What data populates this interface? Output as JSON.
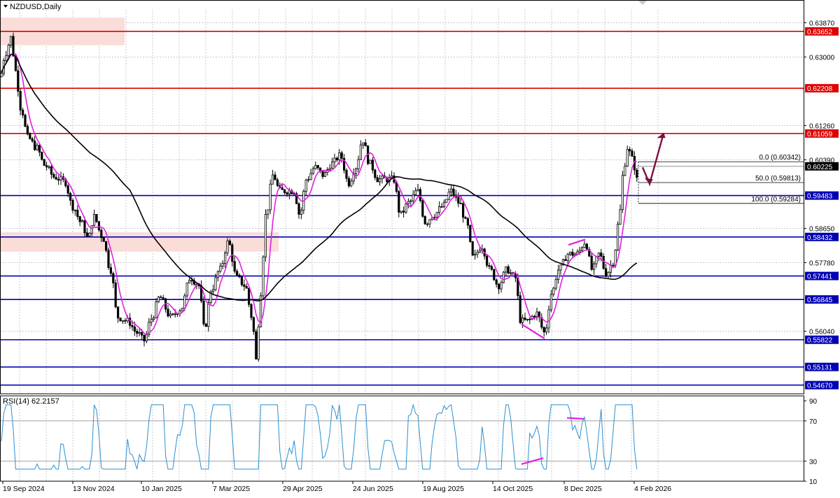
{
  "chart_data": {
    "type": "candlestick",
    "symbol_label": "NZDUSD,Daily",
    "indicator_label": "RSI(14) 62.2157",
    "y_axis_ticks": [
      "0.63870",
      "0.63000",
      "0.61260",
      "0.60390",
      "0.58650",
      "0.57780",
      "0.56040"
    ],
    "ylim": [
      0.5445,
      0.642
    ],
    "rsi_ticks": [
      "90",
      "70",
      "30",
      "10"
    ],
    "rsi_ylim": [
      10,
      90
    ],
    "x_labels": [
      "19 Sep 2024",
      "13 Nov 2024",
      "10 Jan 2025",
      "7 Mar 2025",
      "29 Apr 2025",
      "24 Jun 2025",
      "19 Aug 2025",
      "14 Oct 2025",
      "8 Dec 2025",
      "4 Feb 2026"
    ],
    "levels": [
      {
        "label": "0.63652",
        "value": 0.63652,
        "color": "#e00000"
      },
      {
        "label": "0.62208",
        "value": 0.62208,
        "color": "#e00000"
      },
      {
        "label": "0.61059",
        "value": 0.61059,
        "color": "#e00000"
      },
      {
        "label": "0.59483",
        "value": 0.59483,
        "color": "#0000b4"
      },
      {
        "label": "0.58432",
        "value": 0.58432,
        "color": "#0000b4"
      },
      {
        "label": "0.57441",
        "value": 0.57441,
        "color": "#0000b4"
      },
      {
        "label": "0.56845",
        "value": 0.56845,
        "color": "#0000b4"
      },
      {
        "label": "0.55822",
        "value": 0.55822,
        "color": "#0000b4"
      },
      {
        "label": "0.55131",
        "value": 0.55131,
        "color": "#0000b4"
      },
      {
        "label": "0.54670",
        "value": 0.5467,
        "color": "#0000b4"
      }
    ],
    "current_price": {
      "label": "0.60225",
      "value": 0.60225
    },
    "fibonacci": [
      {
        "label": "0.0 (0.60342)",
        "value": 0.60342
      },
      {
        "label": "50.0 (0.59813)",
        "value": 0.59813
      },
      {
        "label": "100.0 (0.59284)",
        "value": 0.59284
      }
    ],
    "colors": {
      "bull": "#000000",
      "bear": "#000000",
      "ma_fast": "#e020e0",
      "ma_slow": "#000000",
      "rsi": "#2a8fd0",
      "arrow": "#7a1040",
      "divergence": "#e020e0",
      "zone": "#fadcd8",
      "grid": "#c8c8c8"
    }
  }
}
